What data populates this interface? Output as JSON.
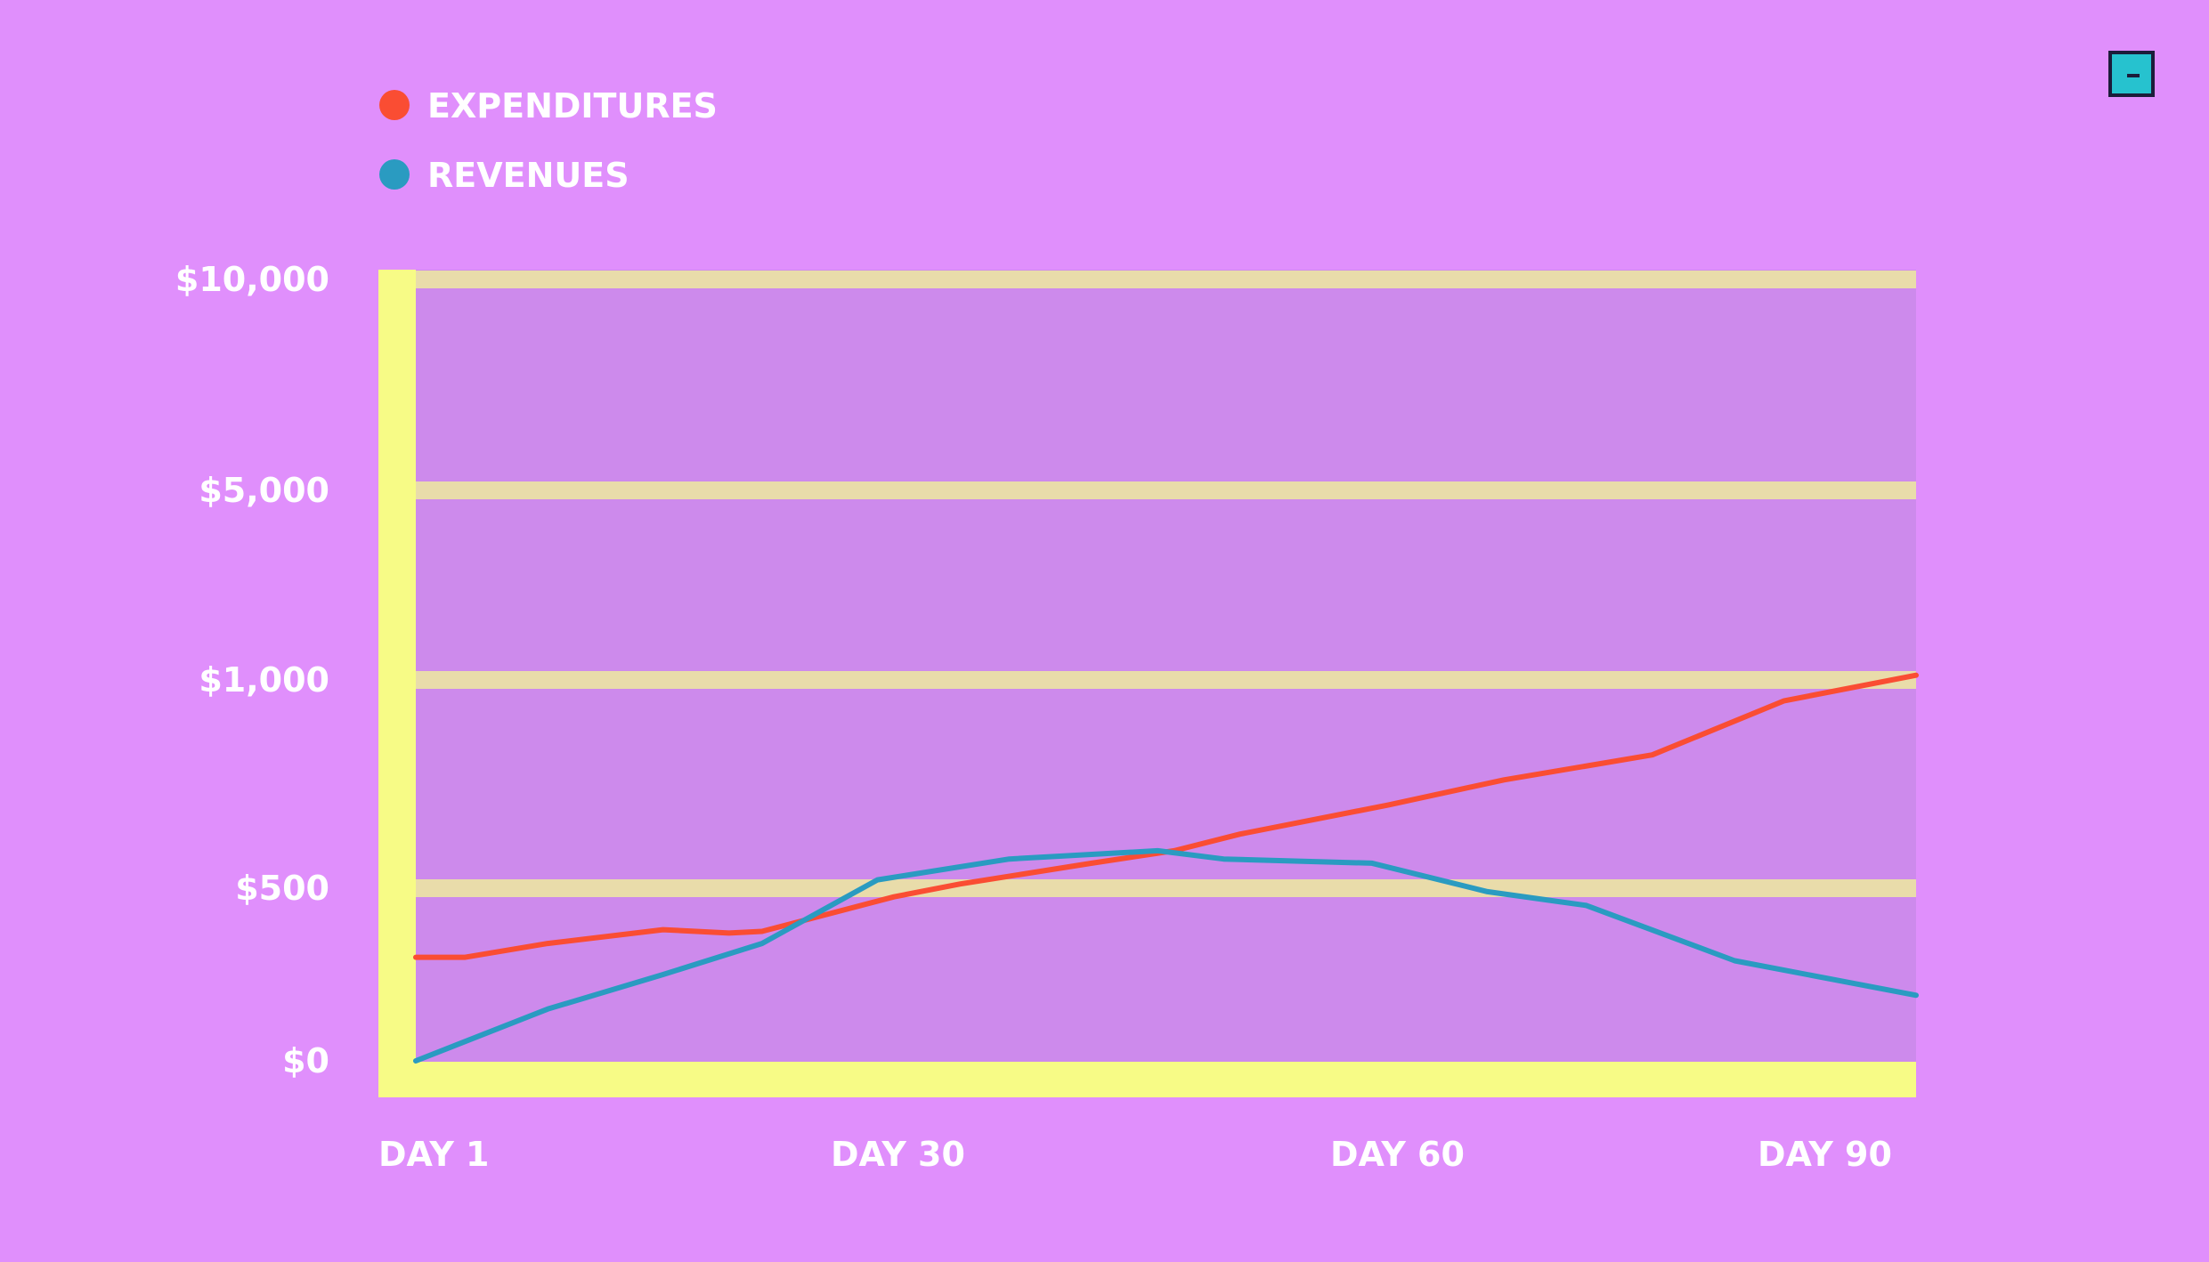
{
  "window_controls": {
    "minimize_icon": "minimize-icon",
    "minimize_color": "#26c2cf"
  },
  "colors": {
    "background": "#e08ffc",
    "plot_area": "#cd8aec",
    "axis_band": "#f7fb86",
    "grid": "#e9dcaa",
    "expenditures": "#fa4d33",
    "revenues": "#2a9bc1",
    "text": "#ffffff"
  },
  "chart_data": {
    "type": "line",
    "title": "",
    "xlabel": "",
    "ylabel": "",
    "x_ticks": [
      "DAY 1",
      "DAY 30",
      "DAY 60",
      "DAY 90"
    ],
    "x_tick_days": [
      1,
      30,
      60,
      90
    ],
    "y_ticks": [
      "$10,000",
      "$5,000",
      "$1,000",
      "$500",
      "$0"
    ],
    "y_tick_values": [
      10000,
      5000,
      1000,
      500,
      0
    ],
    "xlim": [
      1,
      92
    ],
    "grid": true,
    "legend_position": "top-left",
    "series": [
      {
        "name": "EXPENDITURES",
        "color": "#fa4d33",
        "x": [
          1,
          4,
          9,
          16,
          20,
          22,
          30,
          34,
          42,
          47,
          51,
          60,
          67,
          76,
          84,
          92
        ],
        "y": [
          300,
          300,
          340,
          380,
          370,
          375,
          475,
          510,
          560,
          590,
          630,
          700,
          760,
          820,
          950,
          1100
        ]
      },
      {
        "name": "REVENUES",
        "color": "#2a9bc1",
        "x": [
          1,
          9,
          16,
          22,
          29,
          37,
          46,
          50,
          59,
          66,
          72,
          81,
          92
        ],
        "y": [
          0,
          150,
          250,
          340,
          520,
          570,
          590,
          570,
          560,
          490,
          450,
          290,
          190
        ]
      }
    ]
  }
}
